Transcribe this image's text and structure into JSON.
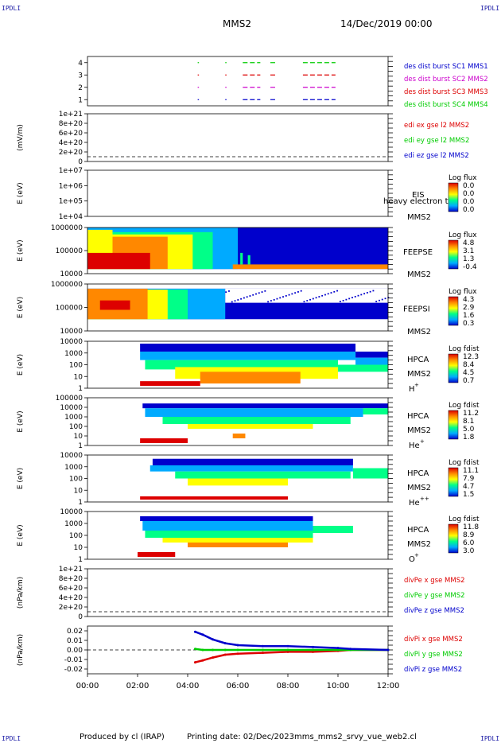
{
  "header": {
    "corner_tl": "IPDLI",
    "corner_tr": "IPDLI",
    "corner_bl": "IPDLI",
    "corner_br": "IPDLI",
    "spacecraft": "MMS2",
    "datetime": "14/Dec/2019 00:00"
  },
  "footer": {
    "producer": "Produced by cl (IRAP)",
    "printing_date": "Printing date: 02/Dec/2023",
    "script": "mms_mms2_srvy_vue_web2.cl"
  },
  "colors": {
    "mms1": "#0000cc",
    "mms2": "#cc00cc",
    "mms3": "#dd0000",
    "mms4": "#00cc00",
    "x_component": "#dd0000",
    "y_component": "#00cc00",
    "z_component": "#0000cc",
    "colorbar": [
      "#0000cc",
      "#00aaff",
      "#00ff88",
      "#ffff00",
      "#ff8800",
      "#dd0000"
    ]
  },
  "x_axis": {
    "ticks": [
      "00:00",
      "02:00",
      "04:00",
      "06:00",
      "08:00",
      "10:00",
      "12:00"
    ],
    "range_hours": [
      0,
      12
    ]
  },
  "chart_data": [
    {
      "id": "burst",
      "type": "line",
      "yticks": [
        "1",
        "2",
        "3",
        "4"
      ],
      "ylim": [
        0.5,
        4.5
      ],
      "legend": [
        {
          "label": "des dist burst SC1 MMS1",
          "color": "#0000cc"
        },
        {
          "label": "des dist burst SC2 MMS2",
          "color": "#cc00cc"
        },
        {
          "label": "des dist burst SC3 MMS3",
          "color": "#dd0000"
        },
        {
          "label": "des dist burst SC4 MMS4",
          "color": "#00cc00"
        }
      ],
      "series": [
        {
          "level": 4,
          "color": "#00cc00",
          "intervals": [
            [
              4.4,
              4.45
            ],
            [
              5.5,
              5.55
            ],
            [
              6.2,
              6.9
            ],
            [
              7.3,
              7.5
            ],
            [
              8.6,
              9.9
            ]
          ]
        },
        {
          "level": 3,
          "color": "#dd0000",
          "intervals": [
            [
              4.4,
              4.45
            ],
            [
              5.5,
              5.55
            ],
            [
              6.2,
              6.9
            ],
            [
              7.3,
              7.5
            ],
            [
              8.6,
              9.9
            ]
          ]
        },
        {
          "level": 2,
          "color": "#cc00cc",
          "intervals": [
            [
              4.4,
              4.45
            ],
            [
              5.5,
              5.55
            ],
            [
              6.2,
              6.9
            ],
            [
              7.3,
              7.5
            ],
            [
              8.6,
              9.9
            ]
          ]
        },
        {
          "level": 1,
          "color": "#0000cc",
          "intervals": [
            [
              4.4,
              4.45
            ],
            [
              5.5,
              5.55
            ],
            [
              6.2,
              6.9
            ],
            [
              7.3,
              7.5
            ],
            [
              8.6,
              9.9
            ]
          ]
        }
      ]
    },
    {
      "id": "edi",
      "type": "line",
      "ylabel": "(mV/m)",
      "yticks": [
        "0",
        "2e+20",
        "4e+20",
        "6e+20",
        "8e+20",
        "1e+21"
      ],
      "legend": [
        {
          "label": "edi ex gse l2 MMS2",
          "color": "#dd0000"
        },
        {
          "label": "edi ey gse l2 MMS2",
          "color": "#00cc00"
        },
        {
          "label": "edi ez gse l2 MMS2",
          "color": "#0000cc"
        }
      ],
      "series": []
    },
    {
      "id": "eis",
      "type": "heatmap",
      "ylabel": "E (eV)",
      "yticks": [
        "1e+04",
        "1e+05",
        "1e+06",
        "1e+07"
      ],
      "instrument": "EIS",
      "spacecraft": "MMS2",
      "overlay_text": "heavy electron tof",
      "colorbar_title": "Log flux",
      "colorbar_ticks": [
        "0.0",
        "0.0",
        "0.0",
        "0.0"
      ],
      "empty": true
    },
    {
      "id": "feepse",
      "type": "heatmap",
      "ylabel": "E (eV)",
      "yticks": [
        "10000",
        "100000",
        "1000000"
      ],
      "instrument": "FEEPSE",
      "spacecraft": "MMS2",
      "colorbar_title": "Log flux",
      "colorbar_ticks": [
        "4.8",
        "3.1",
        "1.3",
        "-0.4"
      ]
    },
    {
      "id": "feepsi",
      "type": "heatmap",
      "ylabel": "E (eV)",
      "yticks": [
        "10000",
        "100000",
        "1000000"
      ],
      "instrument": "FEEPSI",
      "spacecraft": "MMS2",
      "colorbar_title": "Log flux",
      "colorbar_ticks": [
        "4.3",
        "2.9",
        "1.6",
        "0.3"
      ]
    },
    {
      "id": "hpca_h",
      "type": "heatmap",
      "ylabel": "E (eV)",
      "yticks": [
        "1",
        "10",
        "100",
        "1000",
        "10000"
      ],
      "instrument": "HPCA",
      "spacecraft": "MMS2",
      "species": "H",
      "species_sup": "+",
      "colorbar_title": "Log fdist",
      "colorbar_ticks": [
        "12.3",
        "8.4",
        "4.5",
        "0.7"
      ]
    },
    {
      "id": "hpca_he",
      "type": "heatmap",
      "ylabel": "E (eV)",
      "yticks": [
        "1",
        "10",
        "100",
        "1000",
        "10000",
        "100000"
      ],
      "instrument": "HPCA",
      "spacecraft": "MMS2",
      "species": "He",
      "species_sup": "+",
      "colorbar_title": "Log fdist",
      "colorbar_ticks": [
        "11.2",
        "8.1",
        "5.0",
        "1.8"
      ]
    },
    {
      "id": "hpca_hepp",
      "type": "heatmap",
      "ylabel": "E (eV)",
      "yticks": [
        "1",
        "10",
        "100",
        "1000",
        "10000"
      ],
      "instrument": "HPCA",
      "spacecraft": "MMS2",
      "species": "He",
      "species_sup": "++",
      "colorbar_title": "Log fdist",
      "colorbar_ticks": [
        "11.1",
        "7.9",
        "4.7",
        "1.5"
      ]
    },
    {
      "id": "hpca_o",
      "type": "heatmap",
      "ylabel": "E (eV)",
      "yticks": [
        "1",
        "10",
        "100",
        "1000",
        "10000"
      ],
      "instrument": "HPCA",
      "spacecraft": "MMS2",
      "species": "O",
      "species_sup": "+",
      "colorbar_title": "Log fdist",
      "colorbar_ticks": [
        "11.8",
        "8.9",
        "6.0",
        "3.0"
      ]
    },
    {
      "id": "divpe",
      "type": "line",
      "ylabel": "(nPa/km)",
      "yticks": [
        "0",
        "2e+20",
        "4e+20",
        "6e+20",
        "8e+20",
        "1e+21"
      ],
      "legend": [
        {
          "label": "divPe x gse MMS2",
          "color": "#dd0000"
        },
        {
          "label": "divPe y gse MMS2",
          "color": "#00cc00"
        },
        {
          "label": "divPe z gse MMS2",
          "color": "#0000cc"
        }
      ],
      "series": []
    },
    {
      "id": "divpi",
      "type": "line",
      "ylabel": "(nPa/km)",
      "yticks": [
        "-0.02",
        "-0.01",
        "0.00",
        "0.01",
        "0.02"
      ],
      "ylim": [
        -0.025,
        0.025
      ],
      "legend": [
        {
          "label": "divPi x gse MMS2",
          "color": "#dd0000"
        },
        {
          "label": "divPi y gse MMS2",
          "color": "#00cc00"
        },
        {
          "label": "divPi z gse MMS2",
          "color": "#0000cc"
        }
      ],
      "series": [
        {
          "name": "x",
          "color": "#dd0000",
          "x": [
            4.3,
            4.6,
            5.0,
            5.5,
            6.0,
            7.0,
            8.0,
            9.0,
            10.0,
            10.5,
            12.0
          ],
          "y": [
            -0.013,
            -0.011,
            -0.008,
            -0.005,
            -0.004,
            -0.003,
            -0.002,
            -0.002,
            -0.001,
            0.0,
            0.0
          ]
        },
        {
          "name": "y",
          "color": "#00cc00",
          "x": [
            4.3,
            4.6,
            5.0,
            5.5,
            6.0,
            7.0,
            8.0,
            9.0,
            10.0,
            10.5,
            12.0
          ],
          "y": [
            0.001,
            0.0,
            0.0,
            0.0,
            0.0,
            0.0,
            0.0,
            0.0,
            0.0,
            0.0,
            0.0
          ]
        },
        {
          "name": "z",
          "color": "#0000cc",
          "x": [
            4.3,
            4.6,
            5.0,
            5.5,
            6.0,
            7.0,
            8.0,
            9.0,
            10.0,
            10.5,
            12.0
          ],
          "y": [
            0.019,
            0.016,
            0.011,
            0.007,
            0.005,
            0.004,
            0.004,
            0.003,
            0.002,
            0.001,
            0.0
          ]
        }
      ]
    }
  ]
}
